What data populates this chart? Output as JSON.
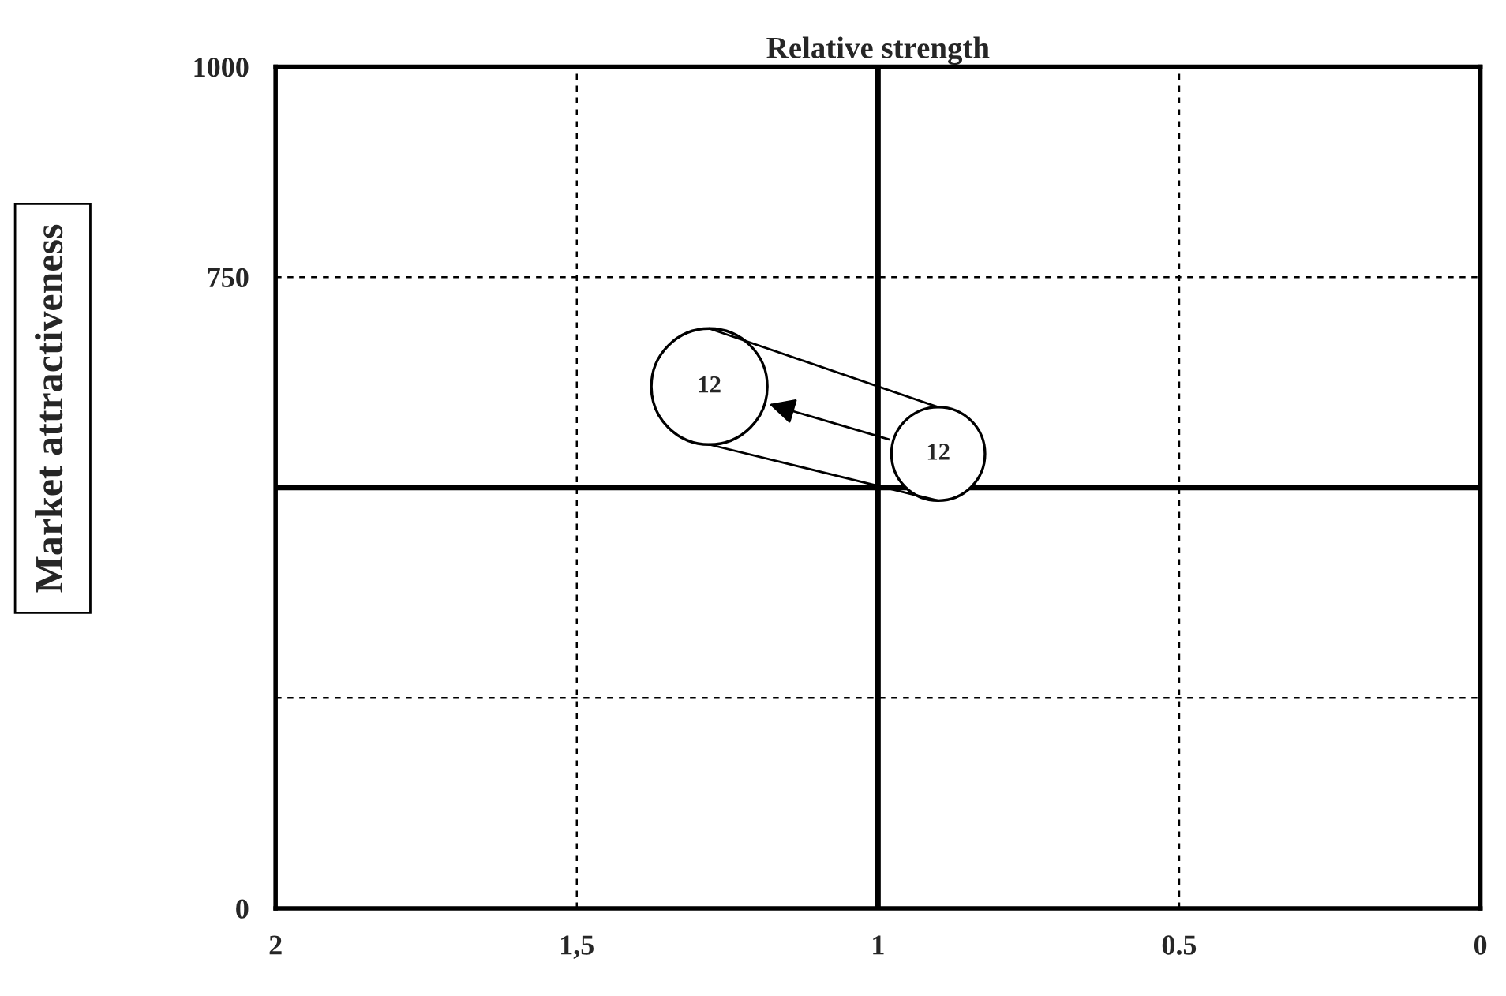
{
  "chart_data": {
    "type": "bubble",
    "xlabel": "Relative strength",
    "ylabel": "Market attractiveness",
    "x": [
      1.28,
      0.9
    ],
    "values": [
      620,
      540
    ],
    "sizes": [
      1,
      0.65
    ],
    "color": "#ffffff",
    "xlim": [
      2,
      0
    ],
    "xticks": [
      2,
      {
        "value": 1.5,
        "label": "1,5"
      },
      1,
      0.5,
      0
    ],
    "ylim": [
      0,
      1000
    ],
    "yticks": [
      0,
      {
        "value": 250,
        "label": null
      },
      750,
      1000
    ],
    "grid": true,
    "ref_lines": [
      {
        "axis": "x",
        "value": 1
      },
      {
        "axis": "y",
        "value": 500
      }
    ],
    "annotations": [
      {
        "text": "12",
        "x": 1.28,
        "y": 620
      },
      {
        "text": "12",
        "x": 0.9,
        "y": 540
      }
    ]
  }
}
